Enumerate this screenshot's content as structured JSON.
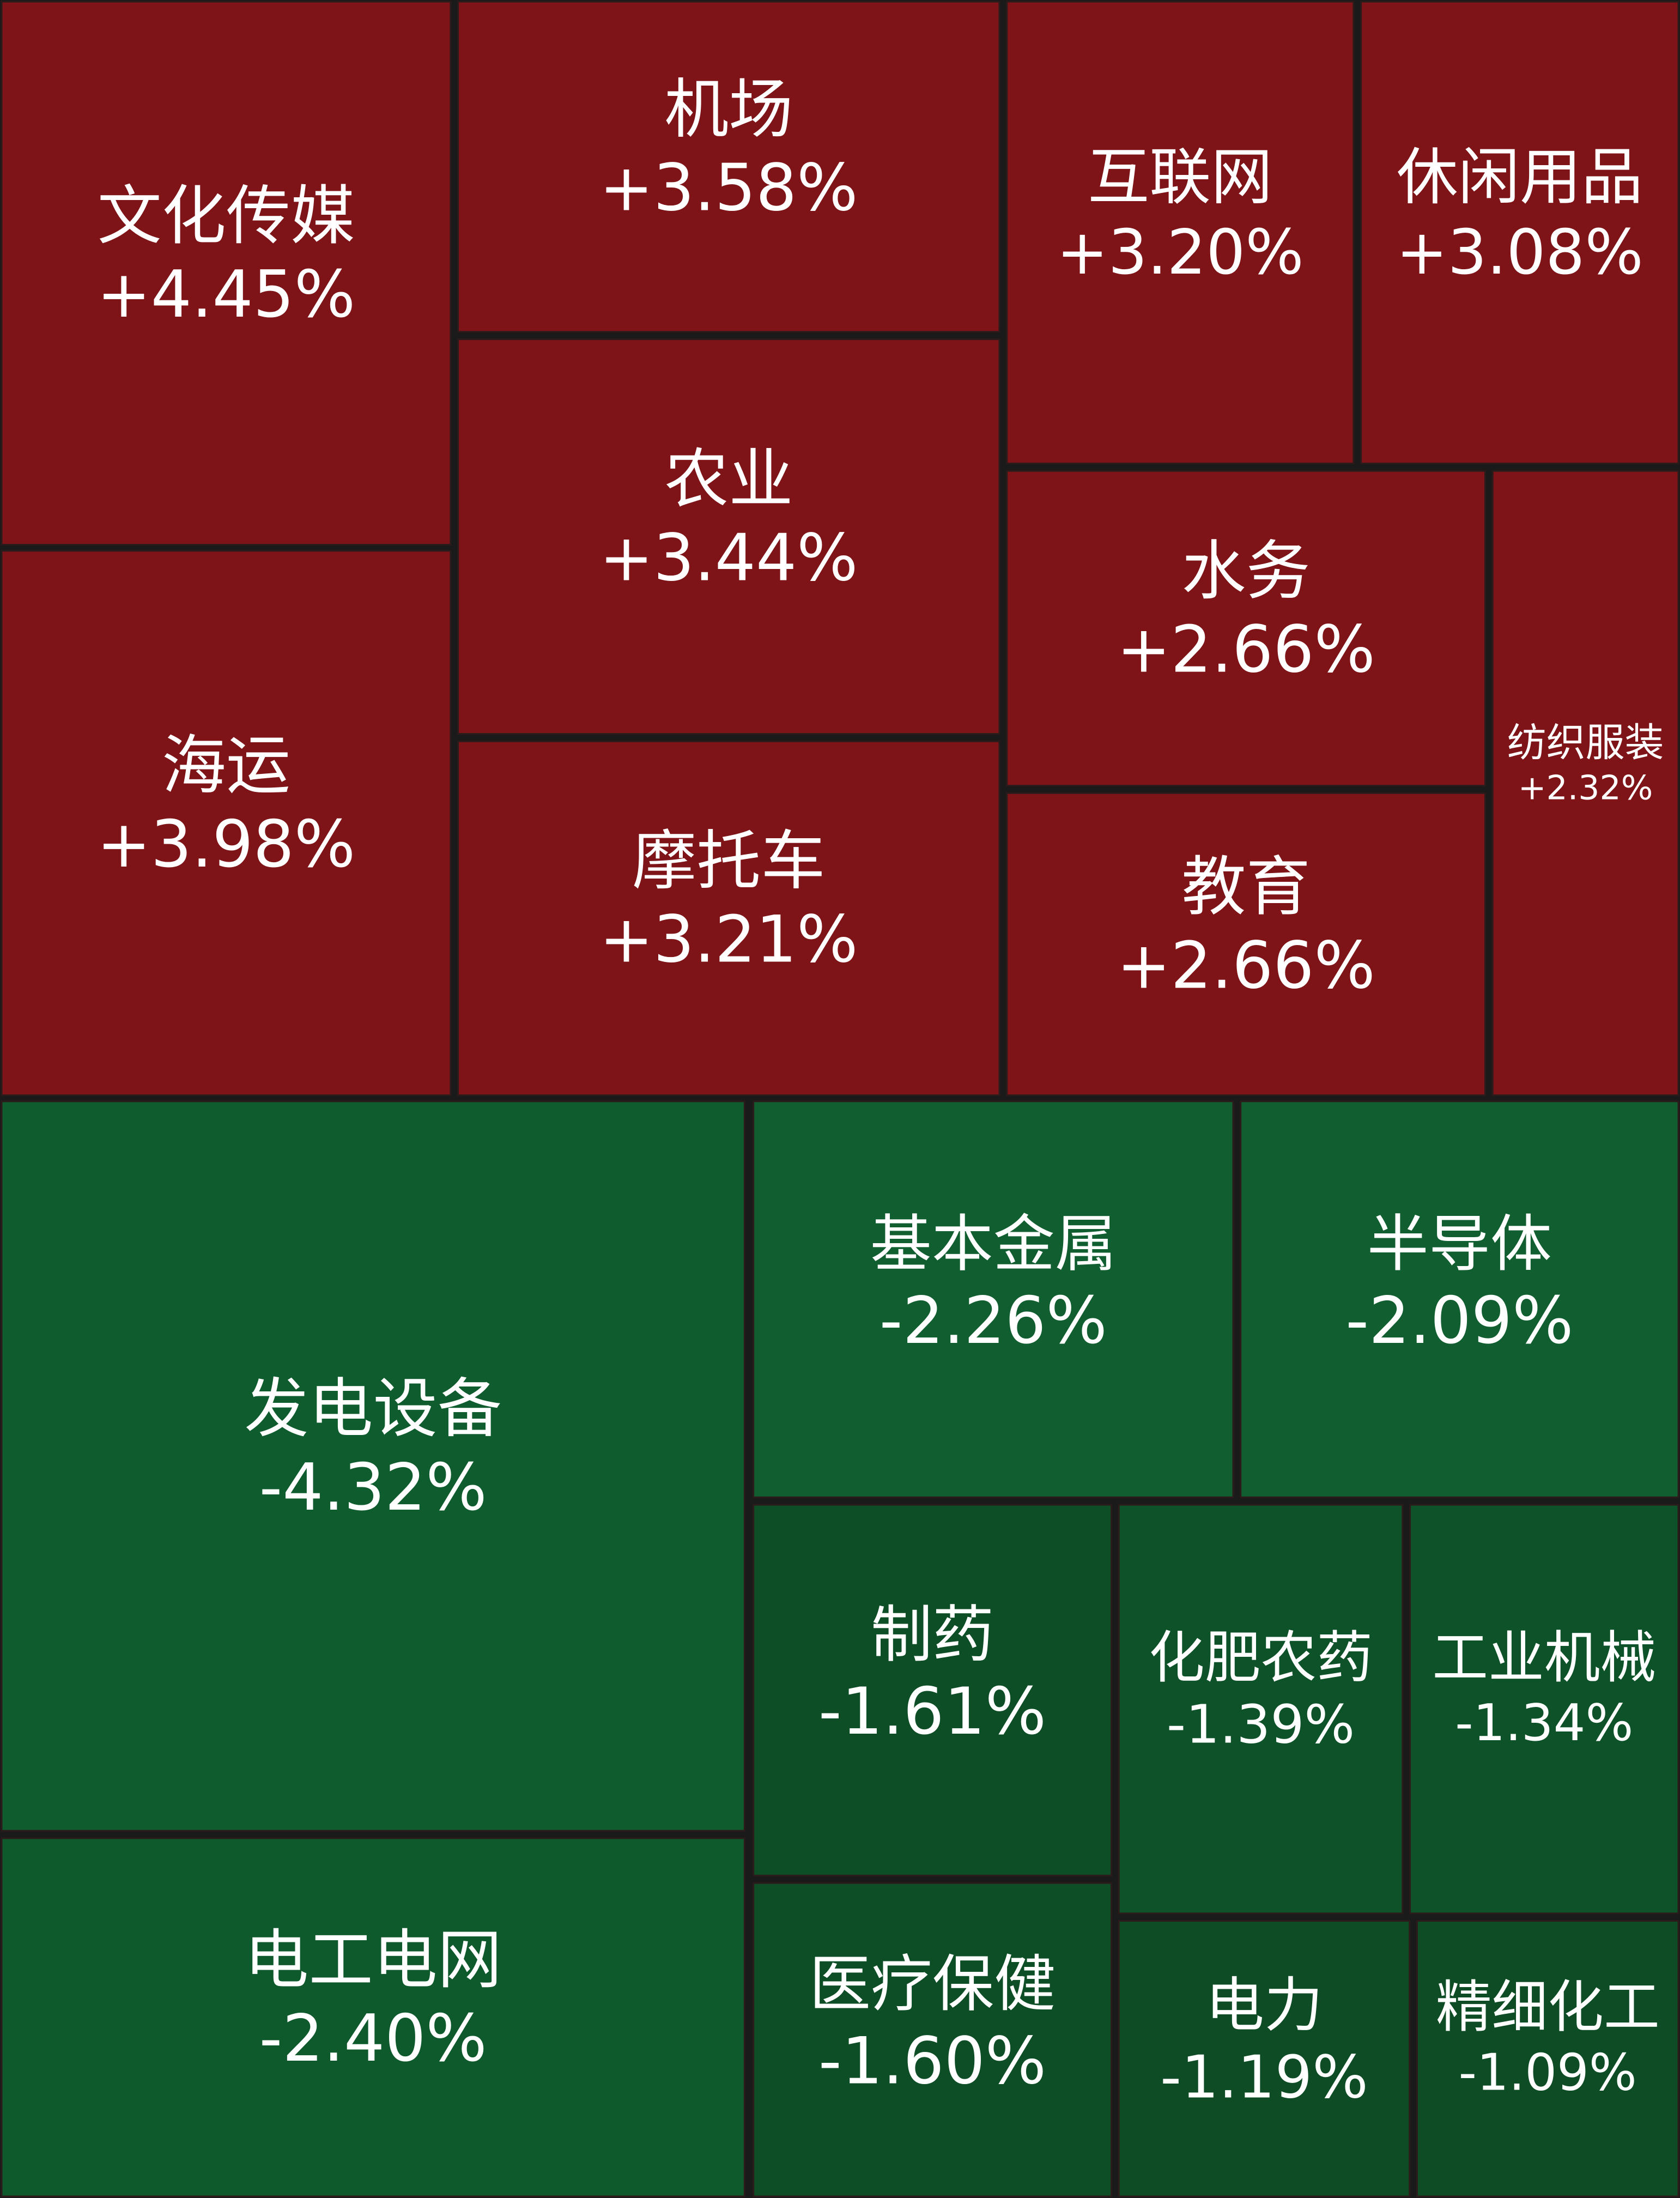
{
  "chart_data": {
    "type": "treemap",
    "categories": [
      "文化传媒",
      "海运",
      "机场",
      "农业",
      "摩托车",
      "互联网",
      "休闲用品",
      "水务",
      "教育",
      "纺织服装",
      "发电设备",
      "电工电网",
      "基本金属",
      "半导体",
      "制药",
      "医疗保健",
      "化肥农药",
      "工业机械",
      "电力",
      "精细化工"
    ],
    "values": [
      4.45,
      3.98,
      3.58,
      3.44,
      3.21,
      3.2,
      3.08,
      2.66,
      2.66,
      2.32,
      -4.32,
      -2.4,
      -2.26,
      -2.09,
      -1.61,
      -1.6,
      -1.39,
      -1.34,
      -1.19,
      -1.09
    ],
    "value_labels": [
      "+4.45%",
      "+3.98%",
      "+3.58%",
      "+3.44%",
      "+3.21%",
      "+3.20%",
      "+3.08%",
      "+2.66%",
      "+2.66%",
      "+2.32%",
      "-4.32%",
      "-2.40%",
      "-2.26%",
      "-2.09%",
      "-1.61%",
      "-1.60%",
      "-1.39%",
      "-1.34%",
      "-1.19%",
      "-1.09%"
    ],
    "colors": [
      "#7e1418",
      "#7e1418",
      "#7e1418",
      "#7e1418",
      "#7e1418",
      "#7e1418",
      "#7e1418",
      "#7e1418",
      "#7e1418",
      "#7e1418",
      "#0f5c2e",
      "#0f5a2d",
      "#115f30",
      "#115f30",
      "#0d4e26",
      "#0d4e26",
      "#0e5229",
      "#0e5229",
      "#0d4c25",
      "#0d4c25"
    ]
  }
}
